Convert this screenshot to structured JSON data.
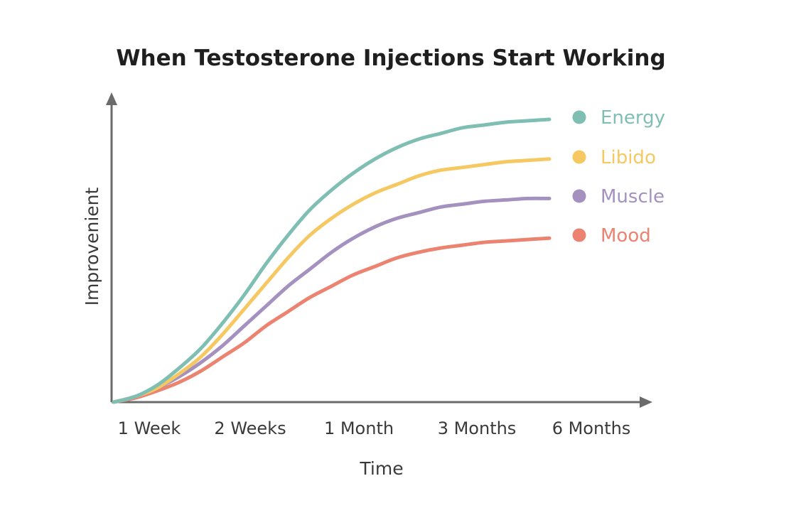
{
  "chart_data": {
    "type": "line",
    "title": "When Testosterone Injections Start Working",
    "xlabel": "Time",
    "ylabel": "Improvenient",
    "categories": [
      "1 Week",
      "2 Weeks",
      "1 Month",
      "3 Months",
      "6 Months"
    ],
    "ylim": [
      0,
      100
    ],
    "grid": false,
    "legend_position": "right",
    "series": [
      {
        "name": "Energy",
        "color": "#7fbfb3",
        "x": [
          0,
          0.2,
          0.4,
          0.6,
          0.8,
          1.0,
          1.2,
          1.4,
          1.6,
          1.8,
          2.0,
          2.2,
          2.4,
          2.6,
          2.8,
          3.0,
          3.2,
          3.4,
          3.6,
          3.8,
          4.0
        ],
        "values": [
          0,
          2,
          6,
          12,
          19,
          28,
          38,
          49,
          59,
          68,
          75,
          81,
          86,
          90,
          93,
          95,
          97,
          98,
          99,
          99.5,
          100
        ]
      },
      {
        "name": "Libido",
        "color": "#f5c862",
        "x": [
          0,
          0.2,
          0.4,
          0.6,
          0.8,
          1.0,
          1.2,
          1.4,
          1.6,
          1.8,
          2.0,
          2.2,
          2.4,
          2.6,
          2.8,
          3.0,
          3.2,
          3.4,
          3.6,
          3.8,
          4.0
        ],
        "values": [
          0,
          2,
          5,
          10,
          16,
          24,
          33,
          42,
          51,
          59,
          65,
          70,
          74,
          77,
          80,
          82,
          83,
          84,
          85,
          85.5,
          86
        ]
      },
      {
        "name": "Muscle",
        "color": "#a491bf",
        "x": [
          0,
          0.2,
          0.4,
          0.6,
          0.8,
          1.0,
          1.2,
          1.4,
          1.6,
          1.8,
          2.0,
          2.2,
          2.4,
          2.6,
          2.8,
          3.0,
          3.2,
          3.4,
          3.6,
          3.8,
          4.0
        ],
        "values": [
          0,
          2,
          5,
          9,
          14,
          20,
          27,
          34,
          41,
          47,
          53,
          58,
          62,
          65,
          67,
          69,
          70,
          71,
          71.5,
          72,
          72
        ]
      },
      {
        "name": "Mood",
        "color": "#ec8370",
        "x": [
          0,
          0.2,
          0.4,
          0.6,
          0.8,
          1.0,
          1.2,
          1.4,
          1.6,
          1.8,
          2.0,
          2.2,
          2.4,
          2.6,
          2.8,
          3.0,
          3.2,
          3.4,
          3.6,
          3.8,
          4.0
        ],
        "values": [
          0,
          1.5,
          4,
          7,
          11,
          16,
          21,
          27,
          32,
          37,
          41,
          45,
          48,
          51,
          53,
          54.5,
          55.5,
          56.5,
          57,
          57.5,
          58
        ]
      }
    ]
  }
}
